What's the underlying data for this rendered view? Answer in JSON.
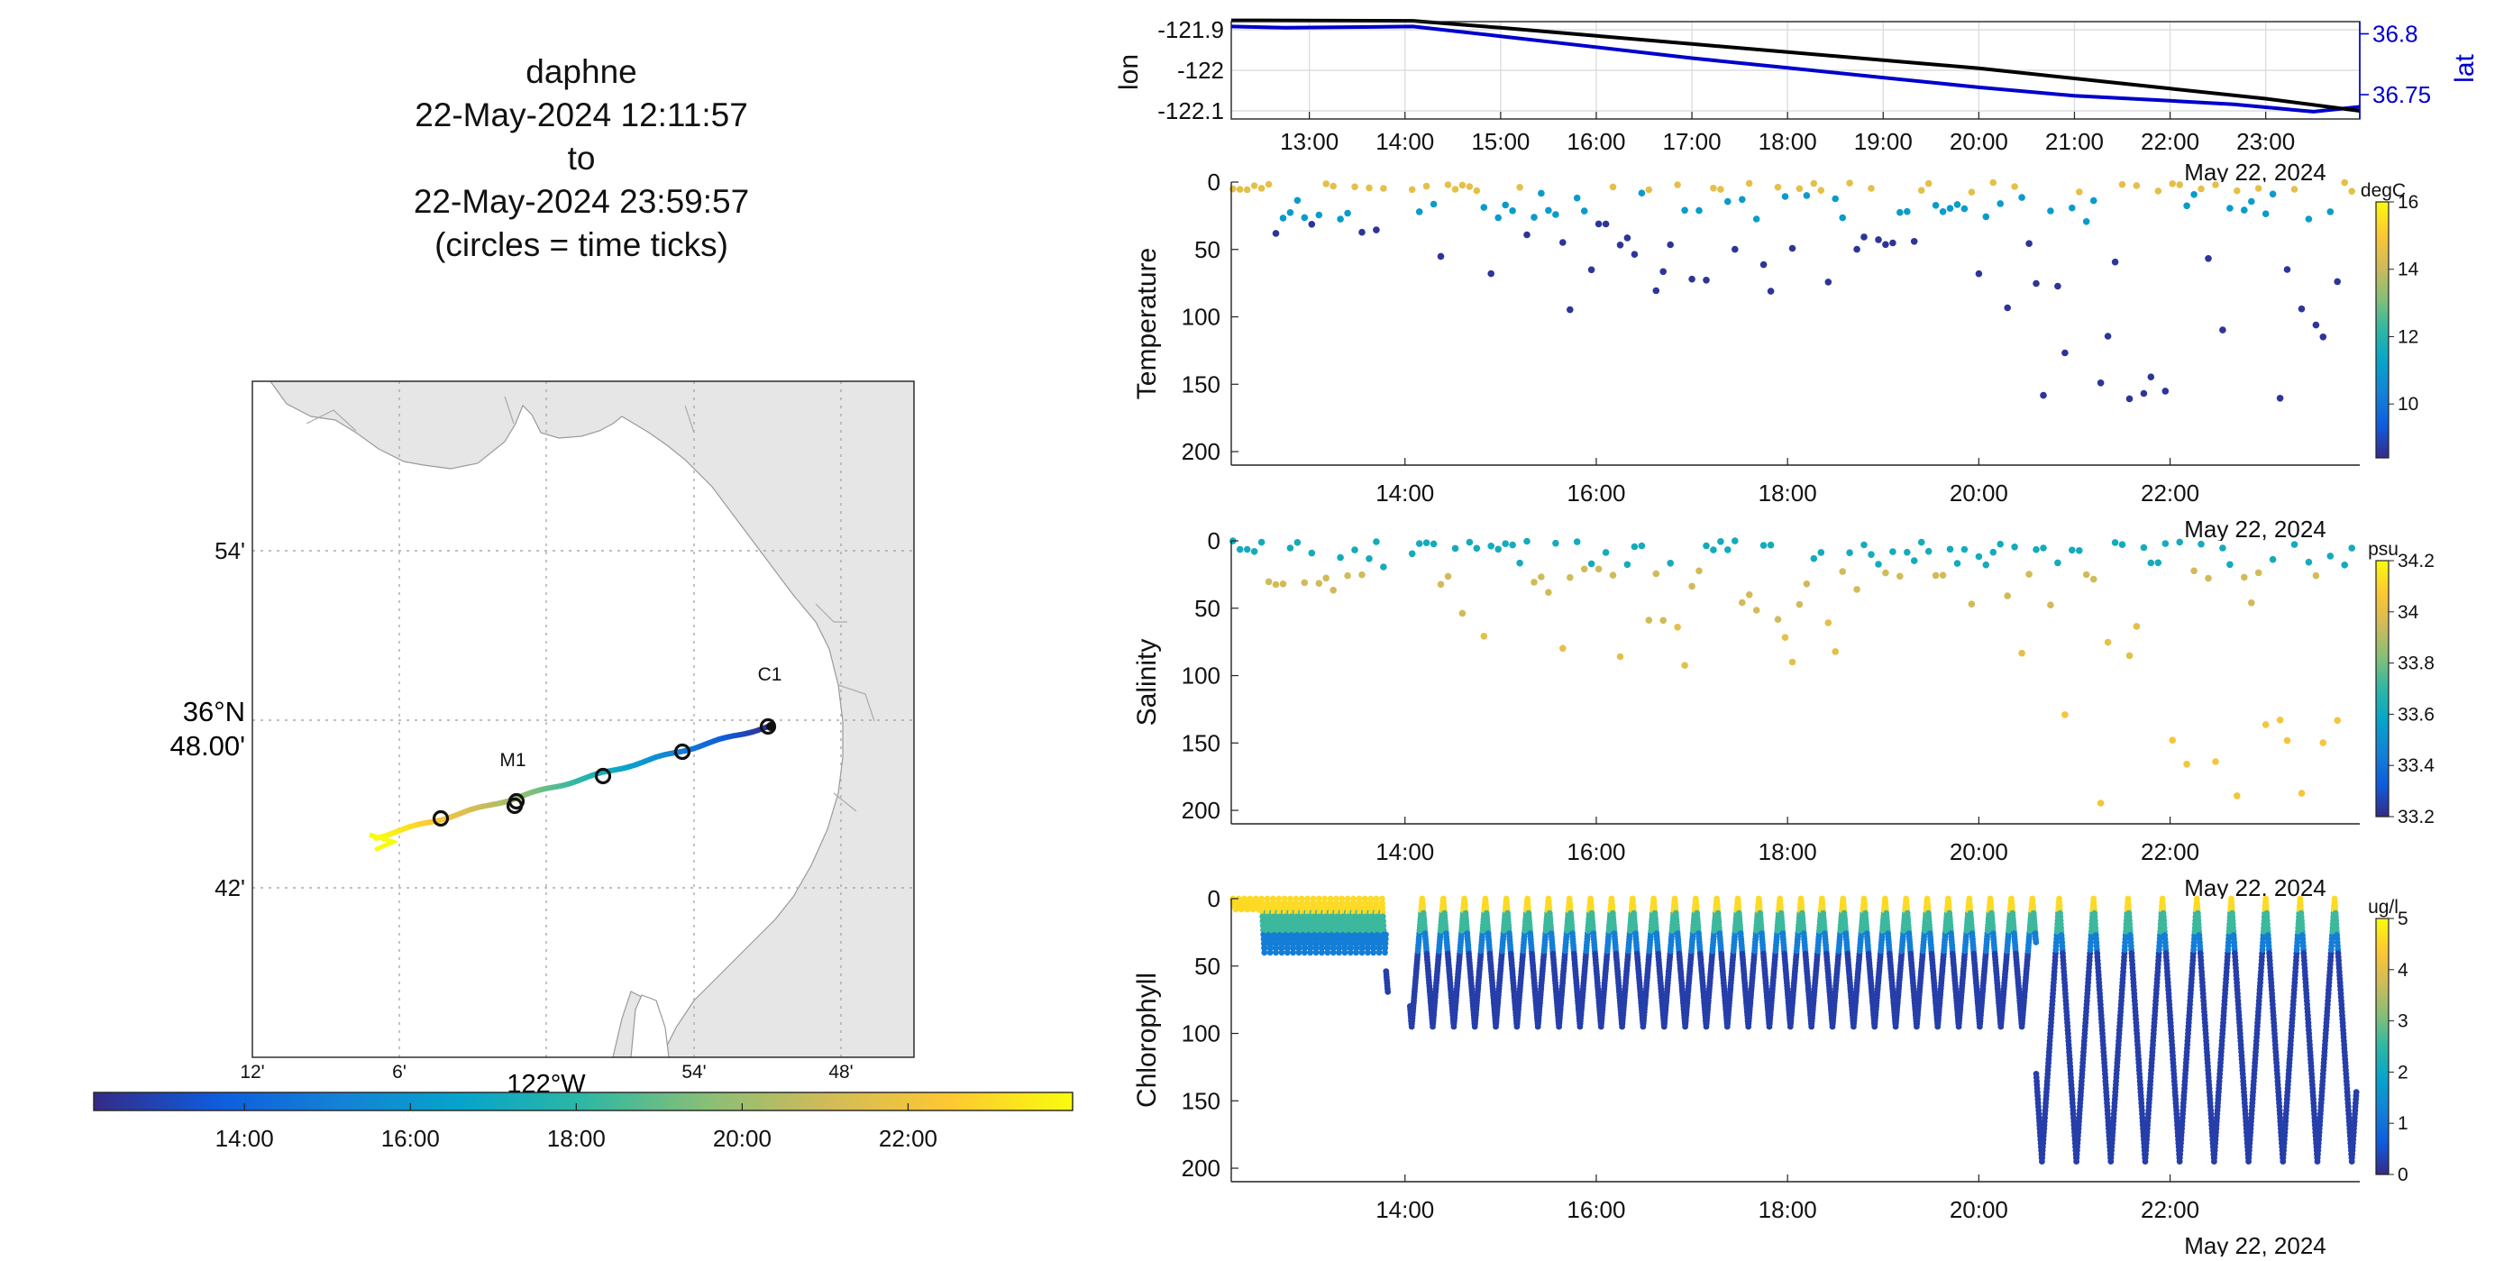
{
  "colors": {
    "parula": [
      "#352a87",
      "#0f5cdd",
      "#1481d6",
      "#06a4ca",
      "#2eb7a4",
      "#87bf77",
      "#d1bb59",
      "#fec832",
      "#f9fb0e"
    ],
    "lat_line": "#0000cc",
    "lon_line": "#000000",
    "land": "#e6e6e6",
    "coast": "#999999"
  },
  "title": {
    "lines": [
      "daphne",
      "22-May-2024 12:11:57",
      "to",
      "22-May-2024 23:59:57",
      "(circles = time ticks)"
    ]
  },
  "map": {
    "lat_ticks": [
      "54'",
      "48.00'",
      "42'"
    ],
    "lat_degree_label": "36°N",
    "lon_ticks": [
      "12'",
      "6'",
      "0",
      "54'",
      "48'"
    ],
    "lon_degree_label": "122°W",
    "stations": [
      "C1",
      "M1"
    ],
    "time_colorbar_ticks": [
      "14:00",
      "16:00",
      "18:00",
      "20:00",
      "22:00"
    ]
  },
  "chart_data": [
    {
      "type": "line",
      "name": "position",
      "ylabel_left": "lon",
      "ylabel_right": "lat",
      "x_ticks": [
        "13:00",
        "14:00",
        "15:00",
        "16:00",
        "17:00",
        "18:00",
        "19:00",
        "20:00",
        "21:00",
        "22:00",
        "23:00"
      ],
      "date_label": "May 22, 2024",
      "y_left_ticks": [
        "-121.9",
        "-122",
        "-122.1"
      ],
      "y_left_lim": [
        -122.12,
        -121.88
      ],
      "y_right_ticks": [
        "36.8",
        "36.75"
      ],
      "y_right_lim": [
        36.73,
        36.81
      ],
      "x_lim": [
        "12:11",
        "23:59"
      ],
      "series": [
        {
          "name": "lon",
          "color": "#000000",
          "x": [
            "12:11",
            "14:05",
            "15:00",
            "16:00",
            "17:00",
            "18:00",
            "19:00",
            "20:00",
            "21:00",
            "22:00",
            "23:00",
            "23:59"
          ],
          "values": [
            -121.877,
            -121.878,
            -121.895,
            -121.915,
            -121.935,
            -121.955,
            -121.975,
            -121.995,
            -122.02,
            -122.045,
            -122.07,
            -122.1
          ]
        },
        {
          "name": "lat",
          "color": "#0000cc",
          "x": [
            "12:11",
            "12:45",
            "14:05",
            "15:00",
            "16:00",
            "17:00",
            "18:00",
            "19:00",
            "20:00",
            "21:00",
            "22:00",
            "22:40",
            "23:30",
            "23:59"
          ],
          "values": [
            36.806,
            36.805,
            36.806,
            36.798,
            36.789,
            36.78,
            36.772,
            36.764,
            36.756,
            36.749,
            36.745,
            36.742,
            36.736,
            36.74
          ]
        }
      ]
    },
    {
      "type": "scatter",
      "name": "temperature",
      "ylabel": "Temperature",
      "ylim": [
        0,
        210
      ],
      "y_ticks": [
        "0",
        "50",
        "100",
        "150",
        "200"
      ],
      "x_ticks": [
        "14:00",
        "16:00",
        "18:00",
        "20:00",
        "22:00"
      ],
      "x_lim": [
        "12:11",
        "23:59"
      ],
      "date_label": "May 22, 2024",
      "colorbar": {
        "unit": "degC",
        "ticks": [
          "10",
          "12",
          "14",
          "16"
        ],
        "range": [
          8.4,
          16
        ]
      }
    },
    {
      "type": "scatter",
      "name": "salinity",
      "ylabel": "Salinity",
      "ylim": [
        0,
        210
      ],
      "y_ticks": [
        "0",
        "50",
        "100",
        "150",
        "200"
      ],
      "x_ticks": [
        "14:00",
        "16:00",
        "18:00",
        "20:00",
        "22:00"
      ],
      "x_lim": [
        "12:11",
        "23:59"
      ],
      "date_label": "May 22, 2024",
      "colorbar": {
        "unit": "psu",
        "ticks": [
          "33.2",
          "33.4",
          "33.6",
          "33.8",
          "34",
          "34.2"
        ],
        "range": [
          33.2,
          34.2
        ]
      }
    },
    {
      "type": "scatter",
      "name": "chlorophyll",
      "ylabel": "Chlorophyll",
      "ylim": [
        0,
        210
      ],
      "y_ticks": [
        "0",
        "50",
        "100",
        "150",
        "200"
      ],
      "x_ticks": [
        "14:00",
        "16:00",
        "18:00",
        "20:00",
        "22:00"
      ],
      "x_lim": [
        "12:11",
        "23:59"
      ],
      "date_label": "May 22, 2024",
      "colorbar": {
        "unit": "ug/l",
        "ticks": [
          "0",
          "1",
          "2",
          "3",
          "4",
          "5"
        ],
        "range": [
          0,
          5
        ]
      }
    }
  ]
}
